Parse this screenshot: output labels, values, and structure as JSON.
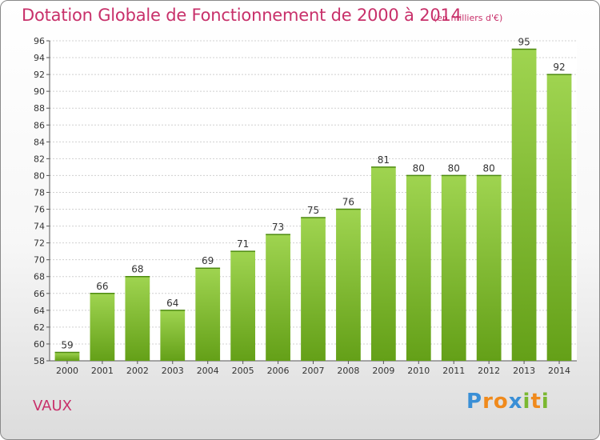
{
  "chart_data": {
    "type": "bar",
    "title": "Dotation Globale de Fonctionnement de 2000 à 2014",
    "subtitle": "(en milliers d'€)",
    "xlabel": "",
    "ylabel": "",
    "categories": [
      "2000",
      "2001",
      "2002",
      "2003",
      "2004",
      "2005",
      "2006",
      "2007",
      "2008",
      "2009",
      "2010",
      "2011",
      "2012",
      "2013",
      "2014"
    ],
    "values": [
      59,
      66,
      68,
      64,
      69,
      71,
      73,
      75,
      76,
      81,
      80,
      80,
      80,
      95,
      92
    ],
    "data_labels": [
      "59",
      "66",
      "68",
      "64",
      "69",
      "71",
      "73",
      "75",
      "76",
      "81",
      "80",
      "80",
      "80",
      "95",
      "92"
    ],
    "ylim": [
      58,
      96
    ],
    "yticks": [
      58,
      60,
      62,
      64,
      66,
      68,
      70,
      72,
      74,
      76,
      78,
      80,
      82,
      84,
      86,
      88,
      90,
      92,
      94,
      96
    ],
    "ytick_labels": [
      "58",
      "60",
      "62",
      "64",
      "66",
      "68",
      "70",
      "72",
      "74",
      "76",
      "78",
      "80",
      "82",
      "84",
      "86",
      "88",
      "90",
      "92",
      "94",
      "96"
    ],
    "grid": true,
    "bar_color": "#7ab830",
    "title_color": "#c8306a"
  },
  "place_name": "VAUX",
  "brand": {
    "letters": [
      "P",
      "r",
      "o",
      "x",
      "i",
      "t",
      "i"
    ],
    "colors": [
      "#3a8fd6",
      "#f08a1c",
      "#f08a1c",
      "#3a8fd6",
      "#7ab830",
      "#f08a1c",
      "#7ab830"
    ]
  }
}
